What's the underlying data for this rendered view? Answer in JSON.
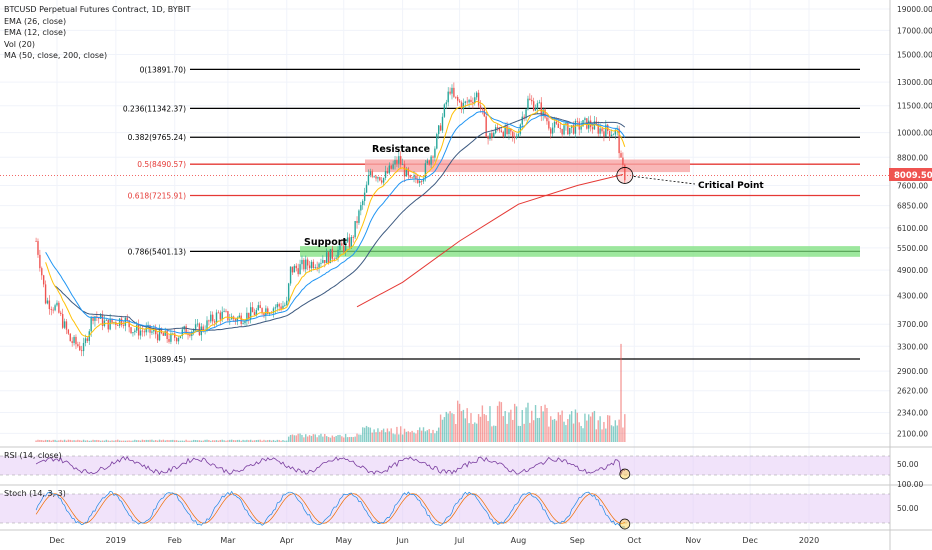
{
  "header": {
    "symbol_title": "BTCUSD Perpetual Futures Contract, 1D, BYBIT",
    "indicators": [
      "EMA (26, close)",
      "EMA (12, close)",
      "Vol (20)",
      "MA (50, close, 200, close)"
    ]
  },
  "panes": {
    "rsi_label": "RSI (14, close)",
    "stoch_label": "Stoch (14, 3, 3)"
  },
  "colors": {
    "candle_up": "#26a69a",
    "candle_down": "#ef5350",
    "ema26": "#2196f3",
    "ema12": "#ffc107",
    "ma50": "#3d5a80",
    "ma200": "#e53935",
    "fib_line": "#000000",
    "fib_red": "#e53935",
    "support_zone": "#7ee07e",
    "resistance_zone": "#f7a5a5",
    "price_tag": "#ef5350",
    "osc_fill": "#e3c8f5",
    "osc_line": "#7b3fa0"
  },
  "annotations": {
    "resistance": "Resistance",
    "support": "Support",
    "critical_point": "Critical Point"
  },
  "price_tag": "8009.50",
  "chart_data": {
    "type": "candlestick",
    "title": "BTCUSD Perpetual Futures Contract, 1D, BYBIT",
    "price_scale": "log",
    "ylim": [
      2050,
      19500
    ],
    "y_ticks": [
      "19000.00",
      "17000.00",
      "15000.00",
      "13000.00",
      "11500.00",
      "10000.00",
      "8800.00",
      "7600.00",
      "6850.00",
      "6100.00",
      "5500.00",
      "4900.00",
      "4300.00",
      "3700.00",
      "3300.00",
      "2900.00",
      "2620.00",
      "2340.00",
      "2100.00"
    ],
    "x_ticks": [
      "Dec",
      "2019",
      "Feb",
      "Mar",
      "Apr",
      "May",
      "Jun",
      "Jul",
      "Aug",
      "Sep",
      "Oct",
      "Nov",
      "Dec",
      "2020"
    ],
    "fib_levels": [
      {
        "label": "0(13891.70)",
        "value": 13891.7
      },
      {
        "label": "0.236(11342.37)",
        "value": 11342.37
      },
      {
        "label": "0.382(9765.24)",
        "value": 9765.24
      },
      {
        "label": "0.5(8490.57)",
        "value": 8490.57
      },
      {
        "label": "0.618(7215.91)",
        "value": 7215.91
      },
      {
        "label": "0.786(5401.13)",
        "value": 5401.13
      },
      {
        "label": "1(3089.45)",
        "value": 3089.45
      }
    ],
    "last_price": 8009.5,
    "price_path": [
      [
        "2018-11-20",
        5700
      ],
      [
        "2018-11-25",
        4200
      ],
      [
        "2018-12-01",
        4000
      ],
      [
        "2018-12-08",
        3400
      ],
      [
        "2018-12-15",
        3250
      ],
      [
        "2018-12-20",
        3900
      ],
      [
        "2018-12-27",
        3700
      ],
      [
        "2019-01-05",
        3800
      ],
      [
        "2019-01-10",
        3600
      ],
      [
        "2019-01-20",
        3550
      ],
      [
        "2019-01-30",
        3430
      ],
      [
        "2019-02-08",
        3600
      ],
      [
        "2019-02-15",
        3600
      ],
      [
        "2019-02-24",
        3900
      ],
      [
        "2019-03-05",
        3800
      ],
      [
        "2019-03-20",
        4000
      ],
      [
        "2019-04-01",
        4100
      ],
      [
        "2019-04-03",
        4900
      ],
      [
        "2019-04-15",
        5100
      ],
      [
        "2019-04-25",
        5300
      ],
      [
        "2019-05-05",
        5700
      ],
      [
        "2019-05-12",
        7200
      ],
      [
        "2019-05-15",
        8200
      ],
      [
        "2019-05-22",
        7900
      ],
      [
        "2019-05-30",
        8700
      ],
      [
        "2019-06-05",
        7700
      ],
      [
        "2019-06-12",
        8100
      ],
      [
        "2019-06-18",
        9300
      ],
      [
        "2019-06-22",
        10800
      ],
      [
        "2019-06-26",
        12600
      ],
      [
        "2019-06-28",
        11900
      ],
      [
        "2019-07-03",
        11500
      ],
      [
        "2019-07-10",
        12200
      ],
      [
        "2019-07-16",
        9700
      ],
      [
        "2019-07-22",
        10300
      ],
      [
        "2019-07-30",
        9600
      ],
      [
        "2019-08-06",
        11800
      ],
      [
        "2019-08-12",
        11400
      ],
      [
        "2019-08-18",
        10300
      ],
      [
        "2019-08-25",
        10200
      ],
      [
        "2019-09-01",
        10300
      ],
      [
        "2019-09-06",
        10500
      ],
      [
        "2019-09-12",
        10200
      ],
      [
        "2019-09-18",
        10100
      ],
      [
        "2019-09-22",
        10000
      ],
      [
        "2019-09-24",
        8500
      ],
      [
        "2019-09-26",
        8009.5
      ]
    ],
    "volume_range": [
      0,
      3700
    ],
    "rsi_range": [
      0,
      100
    ],
    "rsi_ticks": [
      "50.00"
    ],
    "stoch_range": [
      0,
      100
    ],
    "stoch_ticks": [
      "100.00",
      "50.00"
    ]
  }
}
